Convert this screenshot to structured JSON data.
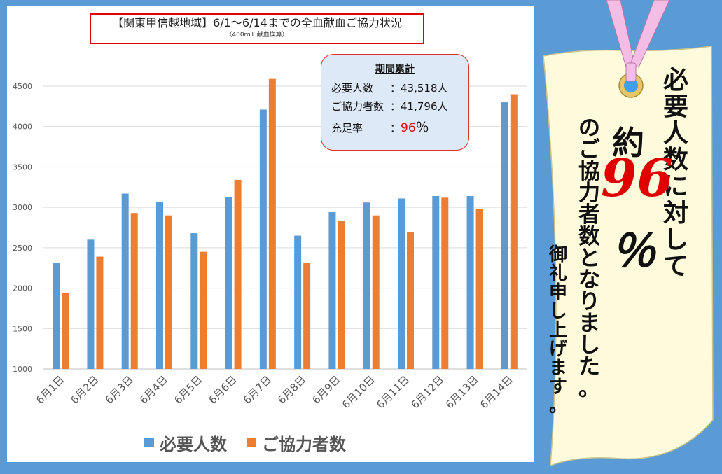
{
  "title": {
    "main": "【関東甲信越地域】6/1～6/14までの全血献血ご協力状況",
    "sub": "（400ｍＬ献血換算）"
  },
  "summary": {
    "heading": "期間累計",
    "required_label": "必要人数",
    "required_value": "：43,518人",
    "donors_label": "ご協力者数",
    "donors_value": "：41,796人",
    "rate_label": "充足率",
    "rate_colon": "：",
    "rate_value": "96",
    "rate_unit": "％"
  },
  "legend": {
    "required": "必要人数",
    "donors": "ご協力者数"
  },
  "message": {
    "line1": "必要人数に対して",
    "prefix": "約",
    "number": "96",
    "percent": "％",
    "line3": "のご協力者数となりました。",
    "line4": "御礼申し上げます。"
  },
  "colors": {
    "required": "#5b9bd5",
    "donors": "#ed7d31",
    "background": "#5b9bd5",
    "accent_red": "#e00000"
  },
  "chart_data": {
    "type": "bar",
    "categories": [
      "6月1日",
      "6月2日",
      "6月3日",
      "6月4日",
      "6月5日",
      "6月6日",
      "6月7日",
      "6月8日",
      "6月9日",
      "6月10日",
      "6月11日",
      "6月12日",
      "6月13日",
      "6月14日"
    ],
    "series": [
      {
        "name": "必要人数",
        "values": [
          2310,
          2600,
          3170,
          3070,
          2680,
          3130,
          4210,
          2650,
          2940,
          3060,
          3110,
          3140,
          3140,
          4300
        ]
      },
      {
        "name": "ご協力者数",
        "values": [
          1940,
          2390,
          2930,
          2900,
          2450,
          3340,
          4590,
          2310,
          2830,
          2900,
          2690,
          3120,
          2980,
          4400
        ]
      }
    ],
    "ylim": [
      1000,
      4500
    ],
    "yticks": [
      1000,
      1500,
      2000,
      2500,
      3000,
      3500,
      4000,
      4500
    ],
    "grid": true,
    "legend_position": "bottom"
  }
}
